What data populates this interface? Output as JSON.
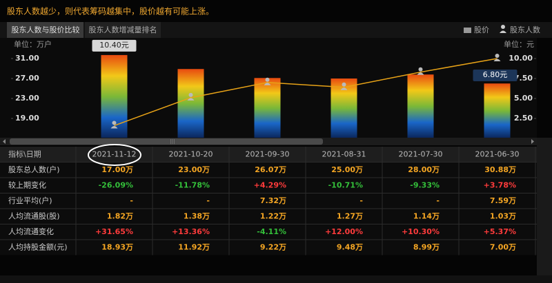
{
  "header": {
    "title": "股东人数越少，则代表筹码越集中，股价越有可能上涨。"
  },
  "tabs": [
    "股东人数与股价比较",
    "股东人数增减量排名"
  ],
  "chart_data": {
    "type": "bar-line",
    "ylabel": "单位：万户",
    "y2label": "单位：元",
    "categories": [
      null,
      null,
      null,
      null,
      null,
      null
    ],
    "series": [
      {
        "name": "股价",
        "type": "line",
        "axis": "y2",
        "color": "#e8a317",
        "values": [
          1.6,
          5.1,
          7.0,
          6.4,
          8.3,
          10.0
        ]
      },
      {
        "name": "股东人数",
        "type": "bar",
        "values": [
          31.7,
          28.9,
          27.1,
          27.0,
          27.8,
          26.0
        ]
      }
    ],
    "ylim": [
      15,
      35
    ],
    "yticks": [
      {
        "value": 19,
        "label": "19.00"
      },
      {
        "value": 23,
        "label": "23.00"
      },
      {
        "value": 27,
        "label": "27.00"
      },
      {
        "value": 31,
        "label": "31.00"
      }
    ],
    "y2lim": [
      0,
      12.5
    ],
    "y2ticks": [
      {
        "value": 2.5,
        "label": "2.50"
      },
      {
        "value": 5,
        "label": "5.00"
      },
      {
        "value": 7.5,
        "label": "7.50"
      },
      {
        "value": 10,
        "label": "10.00"
      }
    ],
    "annotations": [
      "10.40元",
      "6.80元"
    ]
  },
  "table": {
    "header": [
      "指标\\日期",
      "2021-11-12",
      "2021-10-20",
      "2021-09-30",
      "2021-08-31",
      "2021-07-30",
      "2021-06-30"
    ],
    "rows": [
      [
        "股东总人数(户)",
        "17.00万",
        "23.00万",
        "26.07万",
        "25.00万",
        "28.00万",
        "30.88万"
      ],
      [
        "较上期变化",
        "-26.09%",
        "-11.78%",
        "+4.29%",
        "-10.71%",
        "-9.33%",
        "+3.78%"
      ],
      [
        "行业平均(户)",
        "-",
        "-",
        "7.32万",
        "-",
        "-",
        "7.59万"
      ],
      [
        "人均流通股(股)",
        "1.82万",
        "1.38万",
        "1.22万",
        "1.27万",
        "1.14万",
        "1.03万"
      ],
      [
        "人均流通变化",
        "+31.65%",
        "+13.36%",
        "-4.11%",
        "+12.00%",
        "+10.30%",
        "+5.37%"
      ],
      [
        "人均持股金额(元)",
        "18.93万",
        "11.92万",
        "9.22万",
        "9.48万",
        "8.99万",
        "7.00万"
      ]
    ]
  }
}
